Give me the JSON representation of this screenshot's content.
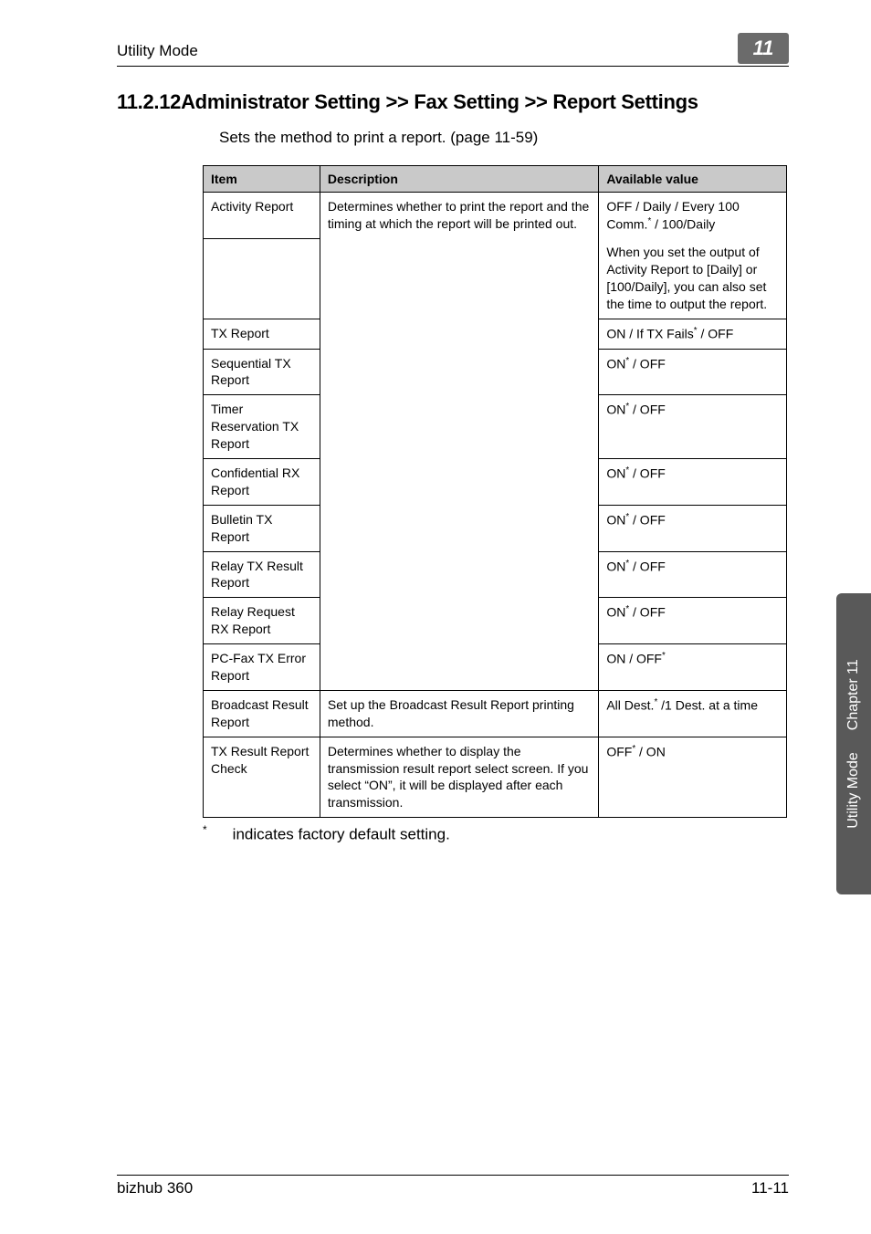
{
  "header": {
    "left": "Utility Mode",
    "badge": "11"
  },
  "section": {
    "number": "11.2.12",
    "title": "Administrator Setting >> Fax Setting >> Report Settings",
    "intro": "Sets the method to print a report. (page 11-59)"
  },
  "table": {
    "columns": [
      "Item",
      "Description",
      "Available value"
    ],
    "rows": [
      {
        "item": "Activity Report",
        "desc": "Determines whether to print the report and the timing at which the report will be printed out.",
        "avail": "OFF / Daily / Every 100 Comm.<sup>*</sup> / 100/Daily",
        "avail2": "When you set the output of Activity Report to [Daily] or [100/Daily], you can also set the time to output the report."
      },
      {
        "item": "TX Report",
        "avail": "ON / If TX Fails<sup>*</sup> / OFF"
      },
      {
        "item": "Sequential TX Report",
        "avail": "ON<sup>*</sup> / OFF"
      },
      {
        "item": "Timer Reservation TX Report",
        "avail": "ON<sup>*</sup> / OFF"
      },
      {
        "item": "Confidential RX Report",
        "avail": "ON<sup>*</sup> / OFF"
      },
      {
        "item": "Bulletin TX Report",
        "avail": "ON<sup>*</sup> / OFF"
      },
      {
        "item": "Relay TX Result Report",
        "avail": "ON<sup>*</sup> / OFF"
      },
      {
        "item": "Relay Request RX Report",
        "avail": "ON<sup>*</sup> / OFF"
      },
      {
        "item": "PC-Fax TX Error Report",
        "avail": "ON / OFF<sup>*</sup>"
      },
      {
        "item": "Broadcast Result Report",
        "desc": "Set up the Broadcast Result Report printing method.",
        "avail": "All Dest.<sup>*</sup> /1 Dest. at a time"
      },
      {
        "item": "TX Result Report Check",
        "desc": "Determines whether to display the transmission result report select screen. If you select “ON”, it will be displayed after each transmission.",
        "avail": "OFF<sup>*</sup> / ON"
      }
    ]
  },
  "footnote": "indicates factory default setting.",
  "sideTab": {
    "line1": "Utility Mode",
    "line2": "Chapter 11"
  },
  "footer": {
    "left": "bizhub 360",
    "right": "11-11"
  }
}
